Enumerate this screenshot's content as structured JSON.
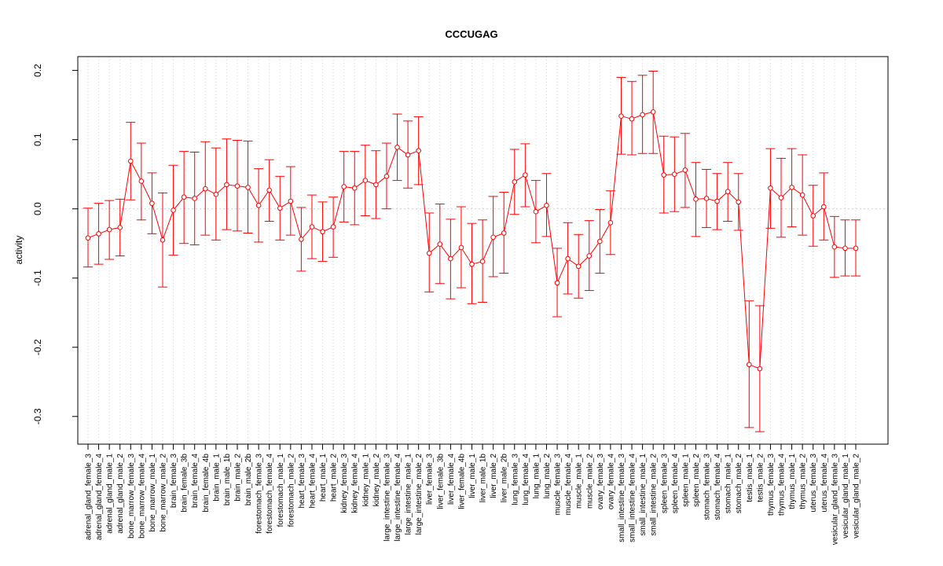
{
  "chart_data": {
    "type": "line",
    "title": "CCCUGAG",
    "xlabel": "",
    "ylabel": "activity",
    "ylim": [
      -0.34,
      0.22
    ],
    "yticks": [
      -0.3,
      -0.2,
      -0.1,
      0.0,
      0.1,
      0.2
    ],
    "ytick_labels": [
      "-0.3",
      "-0.2",
      "-0.1",
      "0.0",
      "0.1",
      "0.2"
    ],
    "reference_line": 0.0,
    "grid": "vertical dotted per category",
    "colors": {
      "series": "#ff0000",
      "grid": "#d3d3d3",
      "axis": "#000000"
    },
    "categories": [
      "adrenal_gland_female_3",
      "adrenal_gland_female_4",
      "adrenal_gland_male_1",
      "adrenal_gland_male_2",
      "bone_marrow_female_3",
      "bone_marrow_female_4",
      "bone_marrow_male_1",
      "bone_marrow_male_2",
      "brain_female_3",
      "brain_female_3b",
      "brain_female_4",
      "brain_female_4b",
      "brain_male_1",
      "brain_male_1b",
      "brain_male_2",
      "brain_male_2b",
      "forestomach_female_3",
      "forestomach_female_4",
      "forestomach_male_1",
      "forestomach_male_2",
      "heart_female_3",
      "heart_female_4",
      "heart_male_1",
      "heart_male_2",
      "kidney_female_3",
      "kidney_female_4",
      "kidney_male_1",
      "kidney_male_2",
      "large_intestine_female_3",
      "large_intestine_female_4",
      "large_intestine_male_1",
      "large_intestine_male_2",
      "liver_female_3",
      "liver_female_3b",
      "liver_female_4",
      "liver_female_4b",
      "liver_male_1",
      "liver_male_1b",
      "liver_male_2",
      "liver_male_2b",
      "lung_female_3",
      "lung_female_4",
      "lung_male_1",
      "lung_male_2",
      "muscle_female_3",
      "muscle_female_4",
      "muscle_male_1",
      "muscle_male_2",
      "ovary_female_3",
      "ovary_female_4",
      "small_intestine_female_3",
      "small_intestine_female_4",
      "small_intestine_male_1",
      "small_intestine_male_2",
      "spleen_female_3",
      "spleen_female_4",
      "spleen_male_1",
      "spleen_male_2",
      "stomach_female_3",
      "stomach_female_4",
      "stomach_male_1",
      "stomach_male_2",
      "testis_male_1",
      "testis_male_2",
      "thymus_female_3",
      "thymus_female_4",
      "thymus_male_1",
      "thymus_male_2",
      "uterus_female_3",
      "uterus_female_4",
      "vesicular_gland_female_3",
      "vesicular_gland_male_1",
      "vesicular_gland_male_2"
    ],
    "series": [
      {
        "name": "activity",
        "values": [
          -0.042,
          -0.036,
          -0.03,
          -0.027,
          0.069,
          0.04,
          0.008,
          -0.045,
          -0.002,
          0.017,
          0.015,
          0.029,
          0.021,
          0.035,
          0.033,
          0.031,
          0.005,
          0.027,
          0.001,
          0.011,
          -0.044,
          -0.026,
          -0.033,
          -0.026,
          0.032,
          0.03,
          0.041,
          0.035,
          0.047,
          0.089,
          0.078,
          0.084,
          -0.064,
          -0.051,
          -0.072,
          -0.056,
          -0.08,
          -0.076,
          -0.041,
          -0.035,
          0.039,
          0.049,
          -0.004,
          0.005,
          -0.107,
          -0.072,
          -0.083,
          -0.068,
          -0.047,
          -0.02,
          0.134,
          0.13,
          0.136,
          0.14,
          0.049,
          0.05,
          0.056,
          0.014,
          0.015,
          0.011,
          0.025,
          0.01,
          -0.225,
          -0.231,
          0.03,
          0.016,
          0.031,
          0.02,
          -0.01,
          0.003,
          -0.055,
          -0.057,
          -0.057
        ],
        "lower": [
          -0.084,
          -0.08,
          -0.073,
          -0.068,
          0.013,
          -0.016,
          -0.036,
          -0.113,
          -0.067,
          -0.05,
          -0.052,
          -0.038,
          -0.045,
          -0.03,
          -0.032,
          -0.035,
          -0.048,
          -0.018,
          -0.045,
          -0.038,
          -0.09,
          -0.072,
          -0.076,
          -0.07,
          -0.019,
          -0.023,
          -0.01,
          -0.014,
          0.0,
          0.041,
          0.03,
          0.035,
          -0.12,
          -0.108,
          -0.13,
          -0.114,
          -0.137,
          -0.135,
          -0.098,
          -0.093,
          -0.008,
          0.003,
          -0.049,
          -0.04,
          -0.156,
          -0.123,
          -0.129,
          -0.118,
          -0.093,
          -0.066,
          0.079,
          0.078,
          0.08,
          0.08,
          -0.006,
          -0.004,
          0.002,
          -0.04,
          -0.027,
          -0.03,
          -0.018,
          -0.031,
          -0.316,
          -0.322,
          -0.028,
          -0.041,
          -0.026,
          -0.038,
          -0.054,
          -0.045,
          -0.099,
          -0.097,
          -0.097
        ],
        "upper": [
          0.001,
          0.008,
          0.012,
          0.014,
          0.125,
          0.095,
          0.052,
          0.023,
          0.063,
          0.083,
          0.082,
          0.097,
          0.088,
          0.101,
          0.099,
          0.098,
          0.058,
          0.071,
          0.047,
          0.061,
          0.002,
          0.02,
          0.01,
          0.017,
          0.083,
          0.083,
          0.092,
          0.084,
          0.095,
          0.137,
          0.127,
          0.133,
          -0.006,
          0.007,
          -0.015,
          0.003,
          -0.021,
          -0.016,
          0.018,
          0.024,
          0.086,
          0.094,
          0.041,
          0.051,
          -0.057,
          -0.02,
          -0.037,
          -0.017,
          -0.001,
          0.026,
          0.19,
          0.184,
          0.193,
          0.199,
          0.105,
          0.104,
          0.109,
          0.067,
          0.057,
          0.051,
          0.067,
          0.051,
          -0.133,
          -0.14,
          0.087,
          0.073,
          0.087,
          0.078,
          0.034,
          0.052,
          -0.011,
          -0.016,
          -0.016
        ]
      }
    ]
  }
}
